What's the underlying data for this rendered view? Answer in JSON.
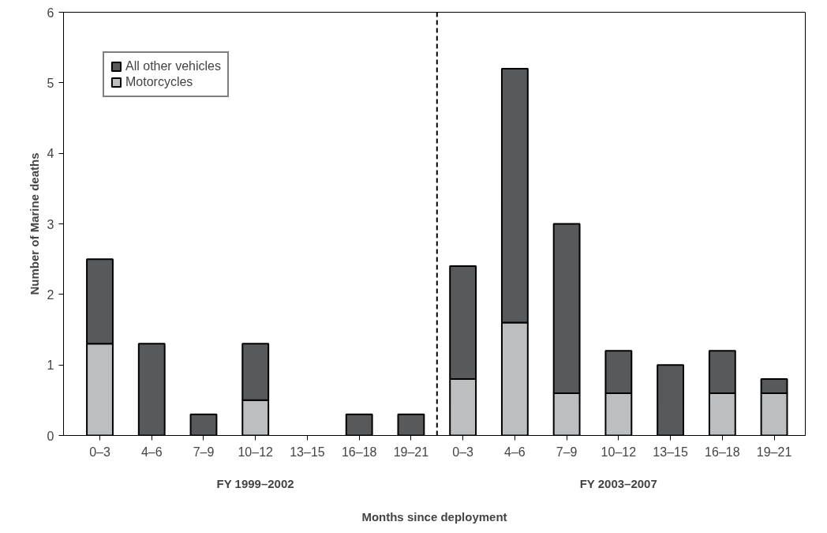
{
  "chart_data": {
    "type": "bar",
    "stacked": true,
    "ylabel": "Number of Marine deaths",
    "xlabel": "Months since deployment",
    "categories": [
      "0–3",
      "4–6",
      "7–9",
      "10–12",
      "13–15",
      "16–18",
      "19–21",
      "0–3",
      "4–6",
      "7–9",
      "10–12",
      "13–15",
      "16–18",
      "19–21"
    ],
    "series": [
      {
        "name": "Motorcycles",
        "color": "#bcbec0",
        "values": [
          1.3,
          0,
          0,
          0.5,
          0,
          0,
          0,
          0.8,
          1.6,
          0.6,
          0.6,
          0,
          0.6,
          0.6
        ]
      },
      {
        "name": "All other vehicles",
        "color": "#58595b",
        "values": [
          1.2,
          1.3,
          0.3,
          0.8,
          0,
          0.3,
          0.3,
          1.6,
          3.6,
          2.4,
          0.6,
          1.0,
          0.6,
          0.2
        ]
      }
    ],
    "ylim": [
      0,
      6
    ],
    "yticks": [
      0,
      1,
      2,
      3,
      4,
      5,
      6
    ],
    "grid": false,
    "legend": "top left",
    "annotations": [
      "FY 1999–2002",
      "FY 2003–2007"
    ]
  }
}
